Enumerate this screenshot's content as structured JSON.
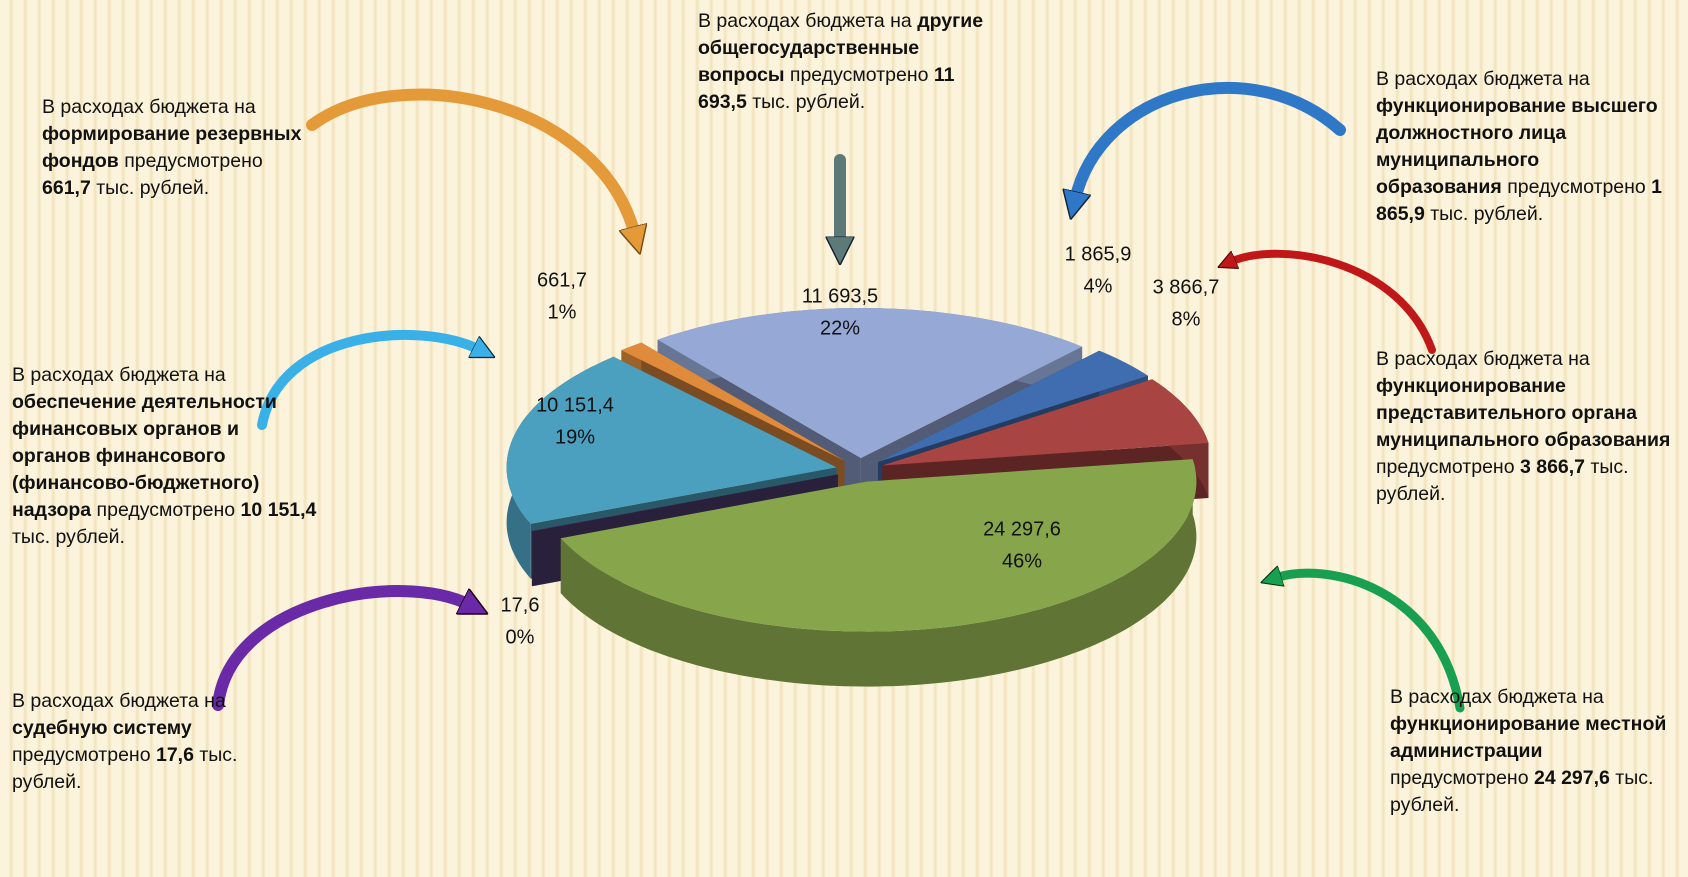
{
  "chart_data": {
    "type": "pie3d",
    "categories": [
      "другие общегосударственные вопросы",
      "функционирование высшего должностного лица муниципального образования",
      "функционирование представительного органа муниципального образования",
      "функционирование местной администрации",
      "судебную систему",
      "обеспечение деятельности финансовых органов и органов финансового (финансово-бюджетного) надзора",
      "формирование резервных фондов"
    ],
    "values": [
      11693.5,
      1865.9,
      3866.7,
      24297.6,
      17.6,
      10151.4,
      661.7
    ],
    "value_labels": [
      "11 693,5",
      "1 865,9",
      "3 866,7",
      "24 297,6",
      "17,6",
      "10 151,4",
      "661,7"
    ],
    "percent_labels": [
      "22%",
      "4%",
      "8%",
      "46%",
      "0%",
      "19%",
      "1%"
    ],
    "colors": [
      "#95a8d6",
      "#3f6db0",
      "#a84442",
      "#87a64c",
      "#4b3c6b",
      "#4ba0bf",
      "#e08a3c"
    ],
    "annotations": [
      [
        {
          "text": "В расходах бюджета на "
        },
        {
          "text": "другие общегосударственные вопросы",
          "bold": true
        },
        {
          "text": " предусмотрено "
        },
        {
          "text": "11 693,5",
          "bold": true
        },
        {
          "text": " тыс. рублей."
        }
      ],
      [
        {
          "text": "В расходах бюджета на "
        },
        {
          "text": "функционирование высшего должностного лица муниципального образования",
          "bold": true
        },
        {
          "text": " предусмотрено "
        },
        {
          "text": "1 865,9",
          "bold": true
        },
        {
          "text": " тыс. рублей."
        }
      ],
      [
        {
          "text": "В расходах бюджета на "
        },
        {
          "text": "функционирование представительного органа муниципального образования",
          "bold": true
        },
        {
          "text": " предусмотрено "
        },
        {
          "text": "3 866,7",
          "bold": true
        },
        {
          "text": " тыс. рублей."
        }
      ],
      [
        {
          "text": "В расходах бюджета на "
        },
        {
          "text": "функционирование местной администрации",
          "bold": true
        },
        {
          "text": " предусмотрено "
        },
        {
          "text": "24 297,6",
          "bold": true
        },
        {
          "text": " тыс. рублей."
        }
      ],
      [
        {
          "text": "В расходах бюджета на "
        },
        {
          "text": "судебную систему",
          "bold": true
        },
        {
          "text": " предусмотрено "
        },
        {
          "text": "17,6",
          "bold": true
        },
        {
          "text": " тыс. рублей."
        }
      ],
      [
        {
          "text": "В расходах бюджета на "
        },
        {
          "text": "обеспечение деятельности финансовых органов и органов финансового (финансово-бюджетного) надзора",
          "bold": true
        },
        {
          "text": " предусмотрено "
        },
        {
          "text": "10 151,4",
          "bold": true
        },
        {
          "text": " тыс. рублей."
        }
      ],
      [
        {
          "text": "В расходах бюджета на "
        },
        {
          "text": "формирование резервных фондов",
          "bold": true
        },
        {
          "text": " предусмотрено "
        },
        {
          "text": "661,7",
          "bold": true
        },
        {
          "text": " тыс. рублей."
        }
      ]
    ]
  }
}
